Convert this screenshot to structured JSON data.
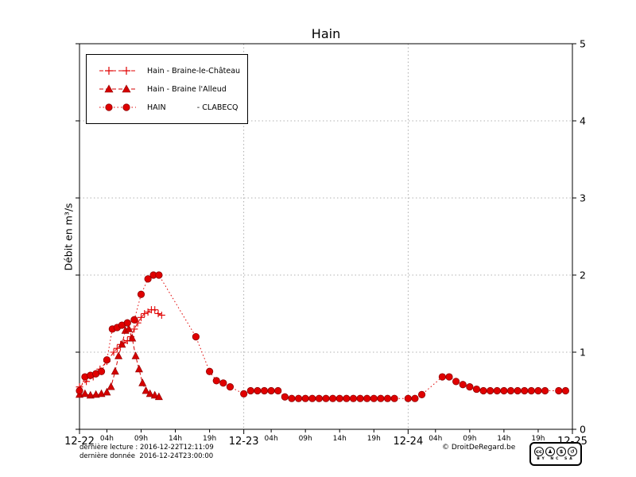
{
  "page": {
    "footer": {
      "last_reading": "dernière lecture : 2016-12-22T12:11:09",
      "last_data": "dernière donnée  2016-12-24T23:00:00",
      "copyright": "© DroitDeRegard.be"
    }
  },
  "license_badge": {
    "logo": "cc",
    "by_icon": "♟",
    "nc_icon": "$",
    "sa_icon": "↺",
    "caption": "BY NC SA"
  },
  "chart_data": {
    "type": "line",
    "title": "Hain",
    "xlabel": "",
    "ylabel": "Débit en m³/s",
    "ylim": [
      0,
      5
    ],
    "x_range_hours": [
      0,
      72
    ],
    "grid": true,
    "legend_position": "upper left",
    "y_ticks": [
      0,
      1,
      2,
      3,
      4,
      5
    ],
    "x_major_ticks": [
      {
        "hour": 0,
        "label": "12-22"
      },
      {
        "hour": 24,
        "label": "12-23"
      },
      {
        "hour": 48,
        "label": "12-24"
      },
      {
        "hour": 72,
        "label": "12-25"
      }
    ],
    "x_minor_ticks": [
      {
        "hour": 4,
        "label": "04h"
      },
      {
        "hour": 9,
        "label": "09h"
      },
      {
        "hour": 14,
        "label": "14h"
      },
      {
        "hour": 19,
        "label": "19h"
      },
      {
        "hour": 28,
        "label": "04h"
      },
      {
        "hour": 33,
        "label": "09h"
      },
      {
        "hour": 38,
        "label": "14h"
      },
      {
        "hour": 43,
        "label": "19h"
      },
      {
        "hour": 52,
        "label": "04h"
      },
      {
        "hour": 57,
        "label": "09h"
      },
      {
        "hour": 62,
        "label": "14h"
      },
      {
        "hour": 67,
        "label": "19h"
      }
    ],
    "series": [
      {
        "name": "Hain - Braine-le-Château",
        "marker": "plus",
        "linestyle": "dashed",
        "color": "#e00000",
        "points": [
          [
            0,
            0.55
          ],
          [
            1,
            0.62
          ],
          [
            2,
            0.68
          ],
          [
            3,
            0.78
          ],
          [
            4,
            0.88
          ],
          [
            5,
            1.0
          ],
          [
            5.5,
            1.05
          ],
          [
            6,
            1.1
          ],
          [
            6.5,
            1.12
          ],
          [
            7,
            1.15
          ],
          [
            7.5,
            1.2
          ],
          [
            8,
            1.3
          ],
          [
            8.5,
            1.38
          ],
          [
            9,
            1.45
          ],
          [
            9.5,
            1.5
          ],
          [
            10,
            1.52
          ],
          [
            10.5,
            1.55
          ],
          [
            11,
            1.55
          ],
          [
            11.5,
            1.5
          ],
          [
            12,
            1.48
          ]
        ]
      },
      {
        "name": "Hain - Braine l'Alleud",
        "marker": "triangle",
        "linestyle": "dashed",
        "color": "#d40000",
        "points": [
          [
            0,
            0.45
          ],
          [
            0.8,
            0.46
          ],
          [
            1.6,
            0.44
          ],
          [
            2.4,
            0.45
          ],
          [
            3.2,
            0.46
          ],
          [
            4,
            0.48
          ],
          [
            4.6,
            0.55
          ],
          [
            5.2,
            0.75
          ],
          [
            5.7,
            0.95
          ],
          [
            6.2,
            1.1
          ],
          [
            6.7,
            1.28
          ],
          [
            7.2,
            1.3
          ],
          [
            7.7,
            1.18
          ],
          [
            8.2,
            0.95
          ],
          [
            8.7,
            0.78
          ],
          [
            9.2,
            0.6
          ],
          [
            9.7,
            0.5
          ],
          [
            10.3,
            0.46
          ],
          [
            11,
            0.44
          ],
          [
            11.6,
            0.42
          ]
        ]
      },
      {
        "name": "HAIN             - CLABECQ",
        "marker": "circle",
        "linestyle": "dotted",
        "color": "#e00000",
        "points": [
          [
            0,
            0.5
          ],
          [
            0.8,
            0.68
          ],
          [
            1.6,
            0.7
          ],
          [
            2.4,
            0.72
          ],
          [
            3.2,
            0.75
          ],
          [
            4,
            0.9
          ],
          [
            4.8,
            1.3
          ],
          [
            5.5,
            1.32
          ],
          [
            6.2,
            1.35
          ],
          [
            7,
            1.38
          ],
          [
            8,
            1.42
          ],
          [
            9,
            1.75
          ],
          [
            10,
            1.95
          ],
          [
            10.8,
            2.0
          ],
          [
            11.6,
            2.0
          ],
          [
            17,
            1.2
          ],
          [
            19,
            0.75
          ],
          [
            20,
            0.63
          ],
          [
            21,
            0.6
          ],
          [
            22,
            0.55
          ],
          [
            24,
            0.46
          ],
          [
            25,
            0.5
          ],
          [
            26,
            0.5
          ],
          [
            27,
            0.5
          ],
          [
            28,
            0.5
          ],
          [
            29,
            0.5
          ],
          [
            30,
            0.42
          ],
          [
            31,
            0.4
          ],
          [
            32,
            0.4
          ],
          [
            33,
            0.4
          ],
          [
            34,
            0.4
          ],
          [
            35,
            0.4
          ],
          [
            36,
            0.4
          ],
          [
            37,
            0.4
          ],
          [
            38,
            0.4
          ],
          [
            39,
            0.4
          ],
          [
            40,
            0.4
          ],
          [
            41,
            0.4
          ],
          [
            42,
            0.4
          ],
          [
            43,
            0.4
          ],
          [
            44,
            0.4
          ],
          [
            45,
            0.4
          ],
          [
            46,
            0.4
          ],
          [
            48,
            0.4
          ],
          [
            49,
            0.4
          ],
          [
            50,
            0.45
          ],
          [
            53,
            0.68
          ],
          [
            54,
            0.68
          ],
          [
            55,
            0.62
          ],
          [
            56,
            0.58
          ],
          [
            57,
            0.55
          ],
          [
            58,
            0.52
          ],
          [
            59,
            0.5
          ],
          [
            60,
            0.5
          ],
          [
            61,
            0.5
          ],
          [
            62,
            0.5
          ],
          [
            63,
            0.5
          ],
          [
            64,
            0.5
          ],
          [
            65,
            0.5
          ],
          [
            66,
            0.5
          ],
          [
            67,
            0.5
          ],
          [
            68,
            0.5
          ],
          [
            70,
            0.5
          ],
          [
            71,
            0.5
          ]
        ]
      }
    ]
  }
}
